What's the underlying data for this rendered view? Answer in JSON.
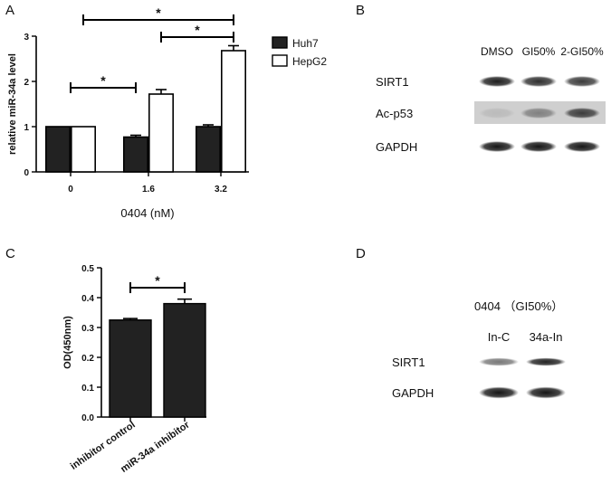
{
  "panels": {
    "A": {
      "letter": "A",
      "chart_data": {
        "type": "bar",
        "categories": [
          "0",
          "1.6",
          "3.2"
        ],
        "series": [
          {
            "name": "Huh7",
            "values": [
              1.0,
              0.77,
              1.0
            ],
            "errors": [
              0.0,
              0.04,
              0.04
            ],
            "fill": "#222222"
          },
          {
            "name": "HepG2",
            "values": [
              1.0,
              1.72,
              2.68
            ],
            "errors": [
              0.0,
              0.1,
              0.11
            ],
            "fill": "#ffffff"
          }
        ],
        "xlabel": "0404 (nM)",
        "ylabel": "relative miR-34a level",
        "ylim": [
          0,
          3
        ],
        "yticks": [
          "0",
          "1",
          "2",
          "3"
        ],
        "grid": false,
        "legend_placement": "right",
        "significance": [
          {
            "from": "0",
            "to": "1.6",
            "label": "*"
          },
          {
            "from": "1.6",
            "to": "3.2",
            "label": "*"
          },
          {
            "from": "0",
            "to": "3.2",
            "label": "*"
          }
        ]
      }
    },
    "B": {
      "letter": "B",
      "columns": [
        "DMSO",
        "GI50%",
        "2-GI50%"
      ],
      "rows": [
        {
          "label": "SIRT1",
          "intensities": [
            0.92,
            0.85,
            0.8
          ]
        },
        {
          "label": "Ac-p53",
          "intensities": [
            0.1,
            0.4,
            0.75
          ]
        },
        {
          "label": "GAPDH",
          "intensities": [
            0.95,
            0.95,
            0.95
          ]
        }
      ]
    },
    "C": {
      "letter": "C",
      "chart_data": {
        "type": "bar",
        "categories": [
          "inhibitor control",
          "miR-34a inhibitor"
        ],
        "values": [
          0.325,
          0.38
        ],
        "errors": [
          0.005,
          0.015
        ],
        "ylabel": "OD(450nm)",
        "ylim": [
          0,
          0.5
        ],
        "yticks": [
          "0.0",
          "0.1",
          "0.2",
          "0.3",
          "0.4",
          "0.5"
        ],
        "grid": false,
        "significance": [
          {
            "from": "inhibitor control",
            "to": "miR-34a inhibitor",
            "label": "*"
          }
        ]
      }
    },
    "D": {
      "letter": "D",
      "header": "0404 （GI50%）",
      "columns": [
        "In-C",
        "34a-In"
      ],
      "rows": [
        {
          "label": "SIRT1",
          "intensities": [
            0.55,
            0.9
          ]
        },
        {
          "label": "GAPDH",
          "intensities": [
            0.95,
            0.95
          ]
        }
      ]
    }
  }
}
